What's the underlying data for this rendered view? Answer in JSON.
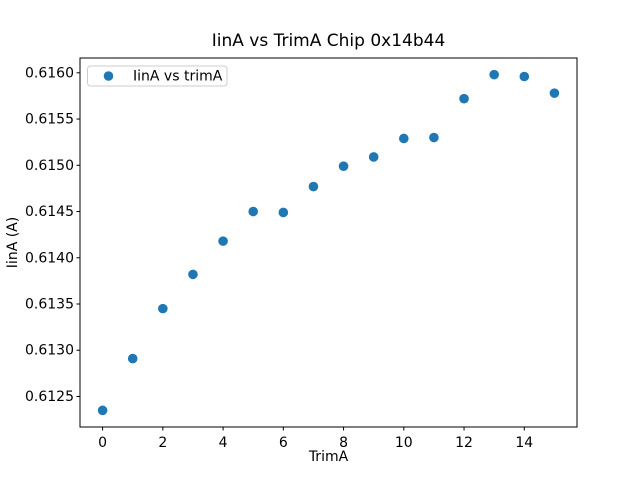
{
  "chart_data": {
    "type": "scatter",
    "title": "IinA vs TrimA Chip 0x14b44",
    "xlabel": "TrimA",
    "ylabel": "IinA (A)",
    "legend": [
      "IinA vs trimA"
    ],
    "legend_position": "upper left",
    "grid": false,
    "marker_color": "#1f77b4",
    "x": [
      0,
      1,
      2,
      3,
      4,
      5,
      6,
      7,
      8,
      9,
      10,
      11,
      12,
      13,
      14,
      15
    ],
    "y": [
      0.61235,
      0.61291,
      0.61345,
      0.61382,
      0.61418,
      0.6145,
      0.61449,
      0.61477,
      0.61499,
      0.61509,
      0.61529,
      0.6153,
      0.61572,
      0.61598,
      0.61596,
      0.61578
    ],
    "xlim": [
      -0.75,
      15.75
    ],
    "ylim": [
      0.61217,
      0.61616
    ],
    "xticks": [
      0,
      2,
      4,
      6,
      8,
      10,
      12,
      14
    ],
    "yticks": [
      0.6125,
      0.613,
      0.6135,
      0.614,
      0.6145,
      0.615,
      0.6155,
      0.616
    ],
    "ytick_decimals": 4
  }
}
